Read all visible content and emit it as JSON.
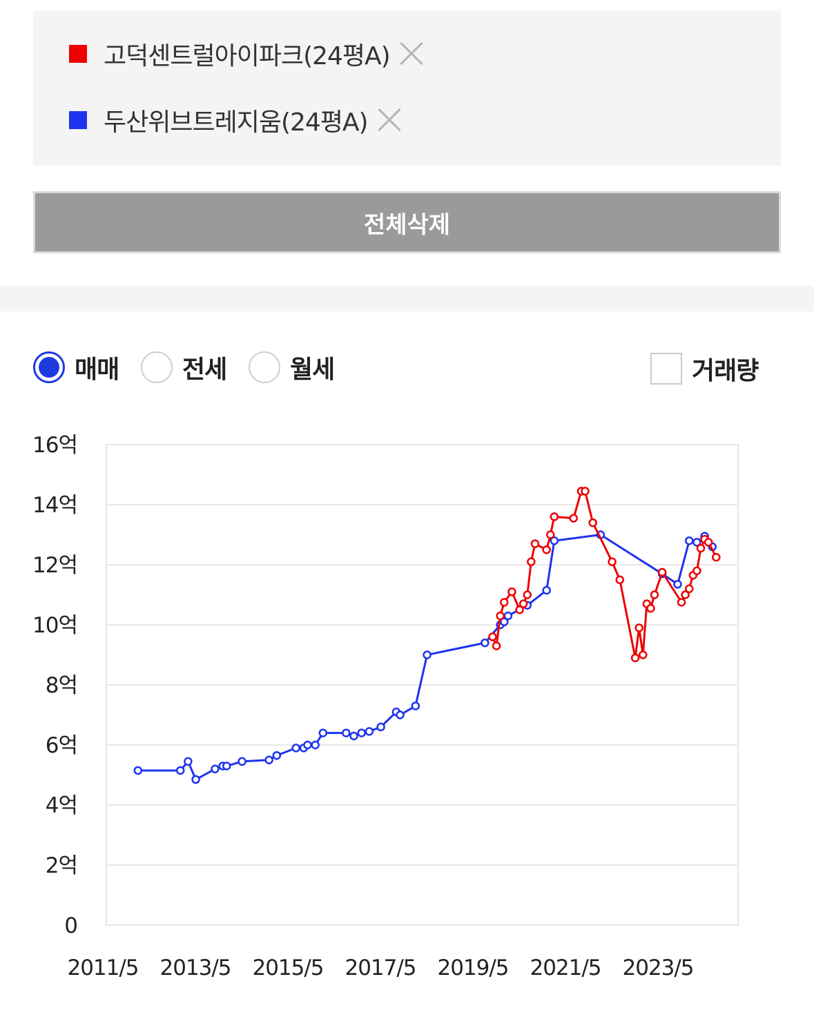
{
  "compare": {
    "items": [
      {
        "label": "고덕센트럴아이파크(24평A)",
        "color": "#ee0000",
        "icon": "close-icon"
      },
      {
        "label": "두산위브트레지움(24평A)",
        "color": "#1e33ee",
        "icon": "close-icon"
      }
    ],
    "delete_all_label": "전체삭제"
  },
  "options": {
    "radios": [
      {
        "label": "매매",
        "selected": true
      },
      {
        "label": "전세",
        "selected": false
      },
      {
        "label": "월세",
        "selected": false
      }
    ],
    "checkbox": {
      "label": "거래량",
      "checked": false
    }
  },
  "chart_data": {
    "type": "line",
    "title": "",
    "xlabel": "",
    "ylabel": "",
    "x_tick_labels": [
      "2011/5",
      "2013/5",
      "2015/5",
      "2017/5",
      "2019/5",
      "2021/5",
      "2023/5"
    ],
    "y_tick_labels": [
      "0",
      "2억",
      "4억",
      "6억",
      "8억",
      "10억",
      "12억",
      "14억",
      "16억"
    ],
    "ylim": [
      0,
      16
    ],
    "grid": true,
    "series": [
      {
        "name": "고덕센트럴아이파크(24평A)",
        "color": "#ee0000",
        "points": [
          [
            "2019/11",
            9.6
          ],
          [
            "2019/12",
            9.3
          ],
          [
            "2020/1",
            10.3
          ],
          [
            "2020/2",
            10.75
          ],
          [
            "2020/4",
            11.1
          ],
          [
            "2020/6",
            10.5
          ],
          [
            "2020/7",
            10.7
          ],
          [
            "2020/8",
            11.0
          ],
          [
            "2020/9",
            12.1
          ],
          [
            "2020/10",
            12.7
          ],
          [
            "2021/1",
            12.5
          ],
          [
            "2021/2",
            13.0
          ],
          [
            "2021/3",
            13.6
          ],
          [
            "2021/8",
            13.55
          ],
          [
            "2021/10",
            14.45
          ],
          [
            "2021/11",
            14.45
          ],
          [
            "2022/1",
            13.4
          ],
          [
            "2022/6",
            12.1
          ],
          [
            "2022/8",
            11.5
          ],
          [
            "2022/12",
            8.9
          ],
          [
            "2023/1",
            9.9
          ],
          [
            "2023/2",
            9.0
          ],
          [
            "2023/3",
            10.7
          ],
          [
            "2023/4",
            10.55
          ],
          [
            "2023/5",
            11.0
          ],
          [
            "2023/7",
            11.75
          ],
          [
            "2023/12",
            10.75
          ],
          [
            "2024/1",
            11.0
          ],
          [
            "2024/2",
            11.2
          ],
          [
            "2024/3",
            11.65
          ],
          [
            "2024/4",
            11.8
          ],
          [
            "2024/5",
            12.55
          ],
          [
            "2024/6",
            12.85
          ],
          [
            "2024/7",
            12.75
          ],
          [
            "2024/9",
            12.25
          ]
        ]
      },
      {
        "name": "두산위브트레지움(24평A)",
        "color": "#1e33ee",
        "points": [
          [
            "2012/3",
            5.15
          ],
          [
            "2013/2",
            5.15
          ],
          [
            "2013/4",
            5.45
          ],
          [
            "2013/6",
            4.85
          ],
          [
            "2013/11",
            5.2
          ],
          [
            "2014/1",
            5.3
          ],
          [
            "2014/2",
            5.3
          ],
          [
            "2014/6",
            5.45
          ],
          [
            "2015/1",
            5.5
          ],
          [
            "2015/3",
            5.65
          ],
          [
            "2015/8",
            5.9
          ],
          [
            "2015/10",
            5.9
          ],
          [
            "2015/11",
            6.0
          ],
          [
            "2016/1",
            6.0
          ],
          [
            "2016/3",
            6.4
          ],
          [
            "2016/9",
            6.4
          ],
          [
            "2016/11",
            6.3
          ],
          [
            "2017/1",
            6.4
          ],
          [
            "2017/3",
            6.45
          ],
          [
            "2017/6",
            6.6
          ],
          [
            "2017/10",
            7.1
          ],
          [
            "2017/11",
            7.0
          ],
          [
            "2018/3",
            7.3
          ],
          [
            "2018/6",
            9.0
          ],
          [
            "2019/9",
            9.4
          ],
          [
            "2020/1",
            10.0
          ],
          [
            "2020/2",
            10.1
          ],
          [
            "2020/3",
            10.3
          ],
          [
            "2020/8",
            10.65
          ],
          [
            "2021/1",
            11.15
          ],
          [
            "2021/3",
            12.8
          ],
          [
            "2022/3",
            13.0
          ],
          [
            "2023/7",
            11.7
          ],
          [
            "2023/11",
            11.35
          ],
          [
            "2024/2",
            12.8
          ],
          [
            "2024/4",
            12.75
          ],
          [
            "2024/6",
            12.95
          ],
          [
            "2024/8",
            12.6
          ]
        ]
      }
    ]
  }
}
